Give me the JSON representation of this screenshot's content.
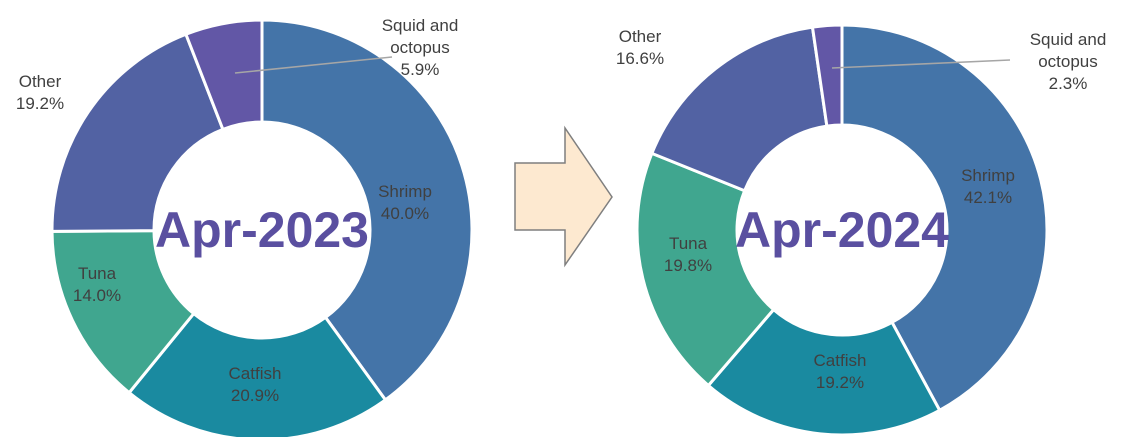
{
  "chart_data": [
    {
      "type": "donut",
      "title": "Apr-2023",
      "categories": [
        "Shrimp",
        "Catfish",
        "Tuna",
        "Other",
        "Squid and octopus"
      ],
      "values": [
        40.0,
        20.9,
        14.0,
        19.2,
        5.9
      ],
      "value_labels": [
        "40.0%",
        "20.9%",
        "14.0%",
        "19.2%",
        "5.9%"
      ],
      "colors": [
        "#4474a8",
        "#1a8aa0",
        "#40a68f",
        "#5262a3",
        "#6257a6"
      ]
    },
    {
      "type": "donut",
      "title": "Apr-2024",
      "categories": [
        "Shrimp",
        "Catfish",
        "Tuna",
        "Other",
        "Squid and octopus"
      ],
      "values": [
        42.1,
        19.2,
        19.8,
        16.6,
        2.3
      ],
      "value_labels": [
        "42.1%",
        "19.2%",
        "19.8%",
        "16.6%",
        "2.3%"
      ],
      "colors": [
        "#4474a8",
        "#1a8aa0",
        "#40a68f",
        "#5262a3",
        "#6257a6"
      ]
    }
  ]
}
